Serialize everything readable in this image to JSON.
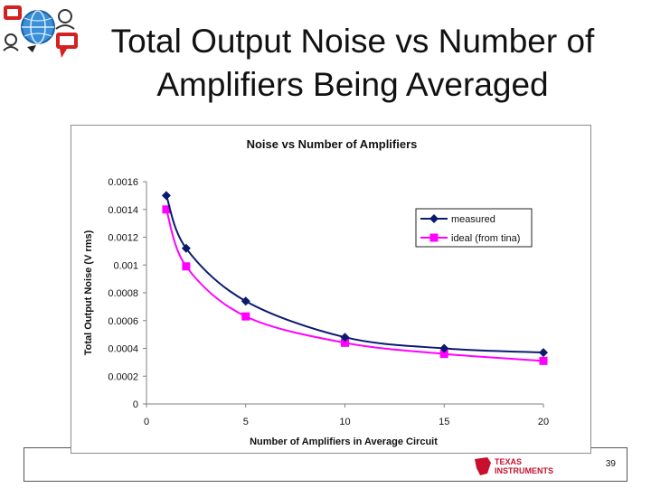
{
  "slide": {
    "title_line1": "Total Output Noise vs Number of",
    "title_line2": "Amplifiers Being Averaged",
    "page_number": "39",
    "brand_line1": "TEXAS",
    "brand_line2": "INSTRUMENTS"
  },
  "chart_data": {
    "type": "line",
    "title": "Noise vs Number of Amplifiers",
    "xlabel": "Number of Amplifiers in Average Circuit",
    "ylabel": "Total Output Noise (V rms)",
    "xlim": [
      0,
      20
    ],
    "ylim": [
      0,
      0.0016
    ],
    "x_ticks": [
      "0",
      "5",
      "10",
      "15",
      "20"
    ],
    "y_ticks": [
      "0",
      "0.0002",
      "0.0004",
      "0.0006",
      "0.0008",
      "0.001",
      "0.0012",
      "0.0014",
      "0.0016"
    ],
    "grid": false,
    "legend_position": "right",
    "series": [
      {
        "name": "measured",
        "color": "#0a1a6e",
        "marker": "diamond",
        "x": [
          1,
          2,
          5,
          10,
          15,
          20
        ],
        "y": [
          0.0015,
          0.00112,
          0.00074,
          0.00048,
          0.0004,
          0.00037
        ]
      },
      {
        "name": "ideal (from tina)",
        "color": "#ff00ff",
        "marker": "square",
        "x": [
          1,
          2,
          5,
          10,
          15,
          20
        ],
        "y": [
          0.0014,
          0.00099,
          0.00063,
          0.00044,
          0.00036,
          0.00031
        ]
      }
    ]
  }
}
